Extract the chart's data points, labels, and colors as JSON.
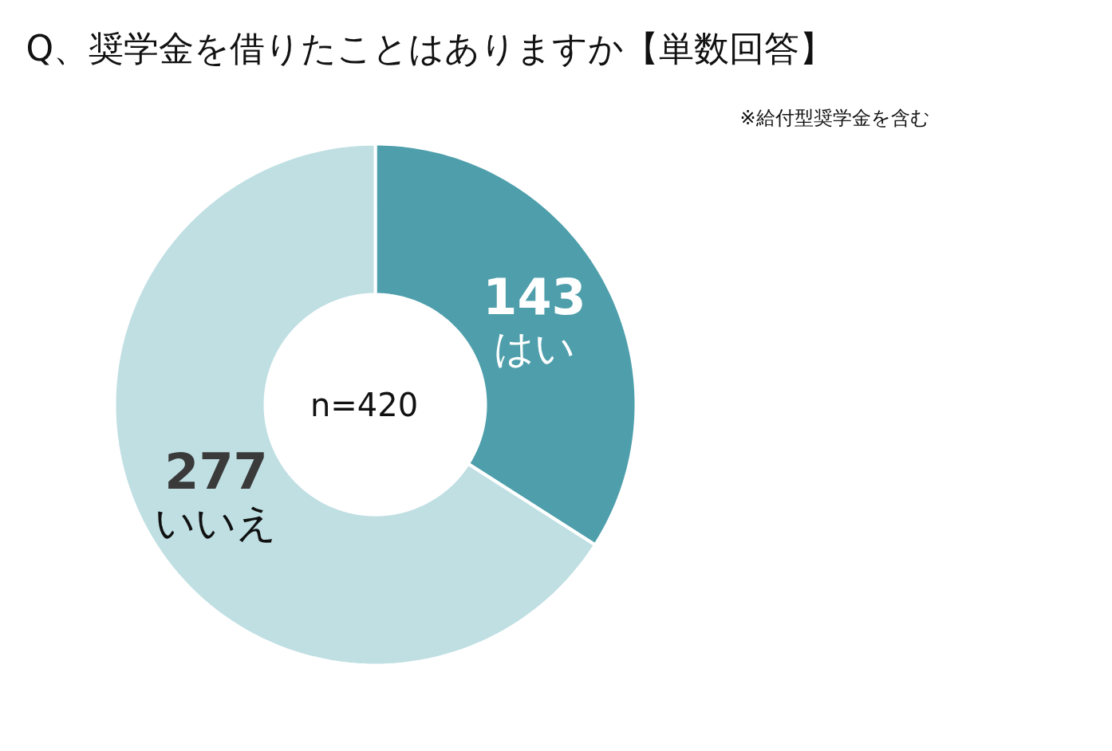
{
  "chart_data": {
    "type": "donut",
    "title": "Q、奨学金を借りたことはありますか【単数回答】",
    "categories": [
      "はい",
      "いいえ"
    ],
    "values": [
      143,
      277
    ],
    "colors": [
      "#4e9fab",
      "#bfdfe3"
    ],
    "data_labels": true,
    "annotations": [
      "※給付型奨学金を含む",
      "n=420"
    ]
  }
}
